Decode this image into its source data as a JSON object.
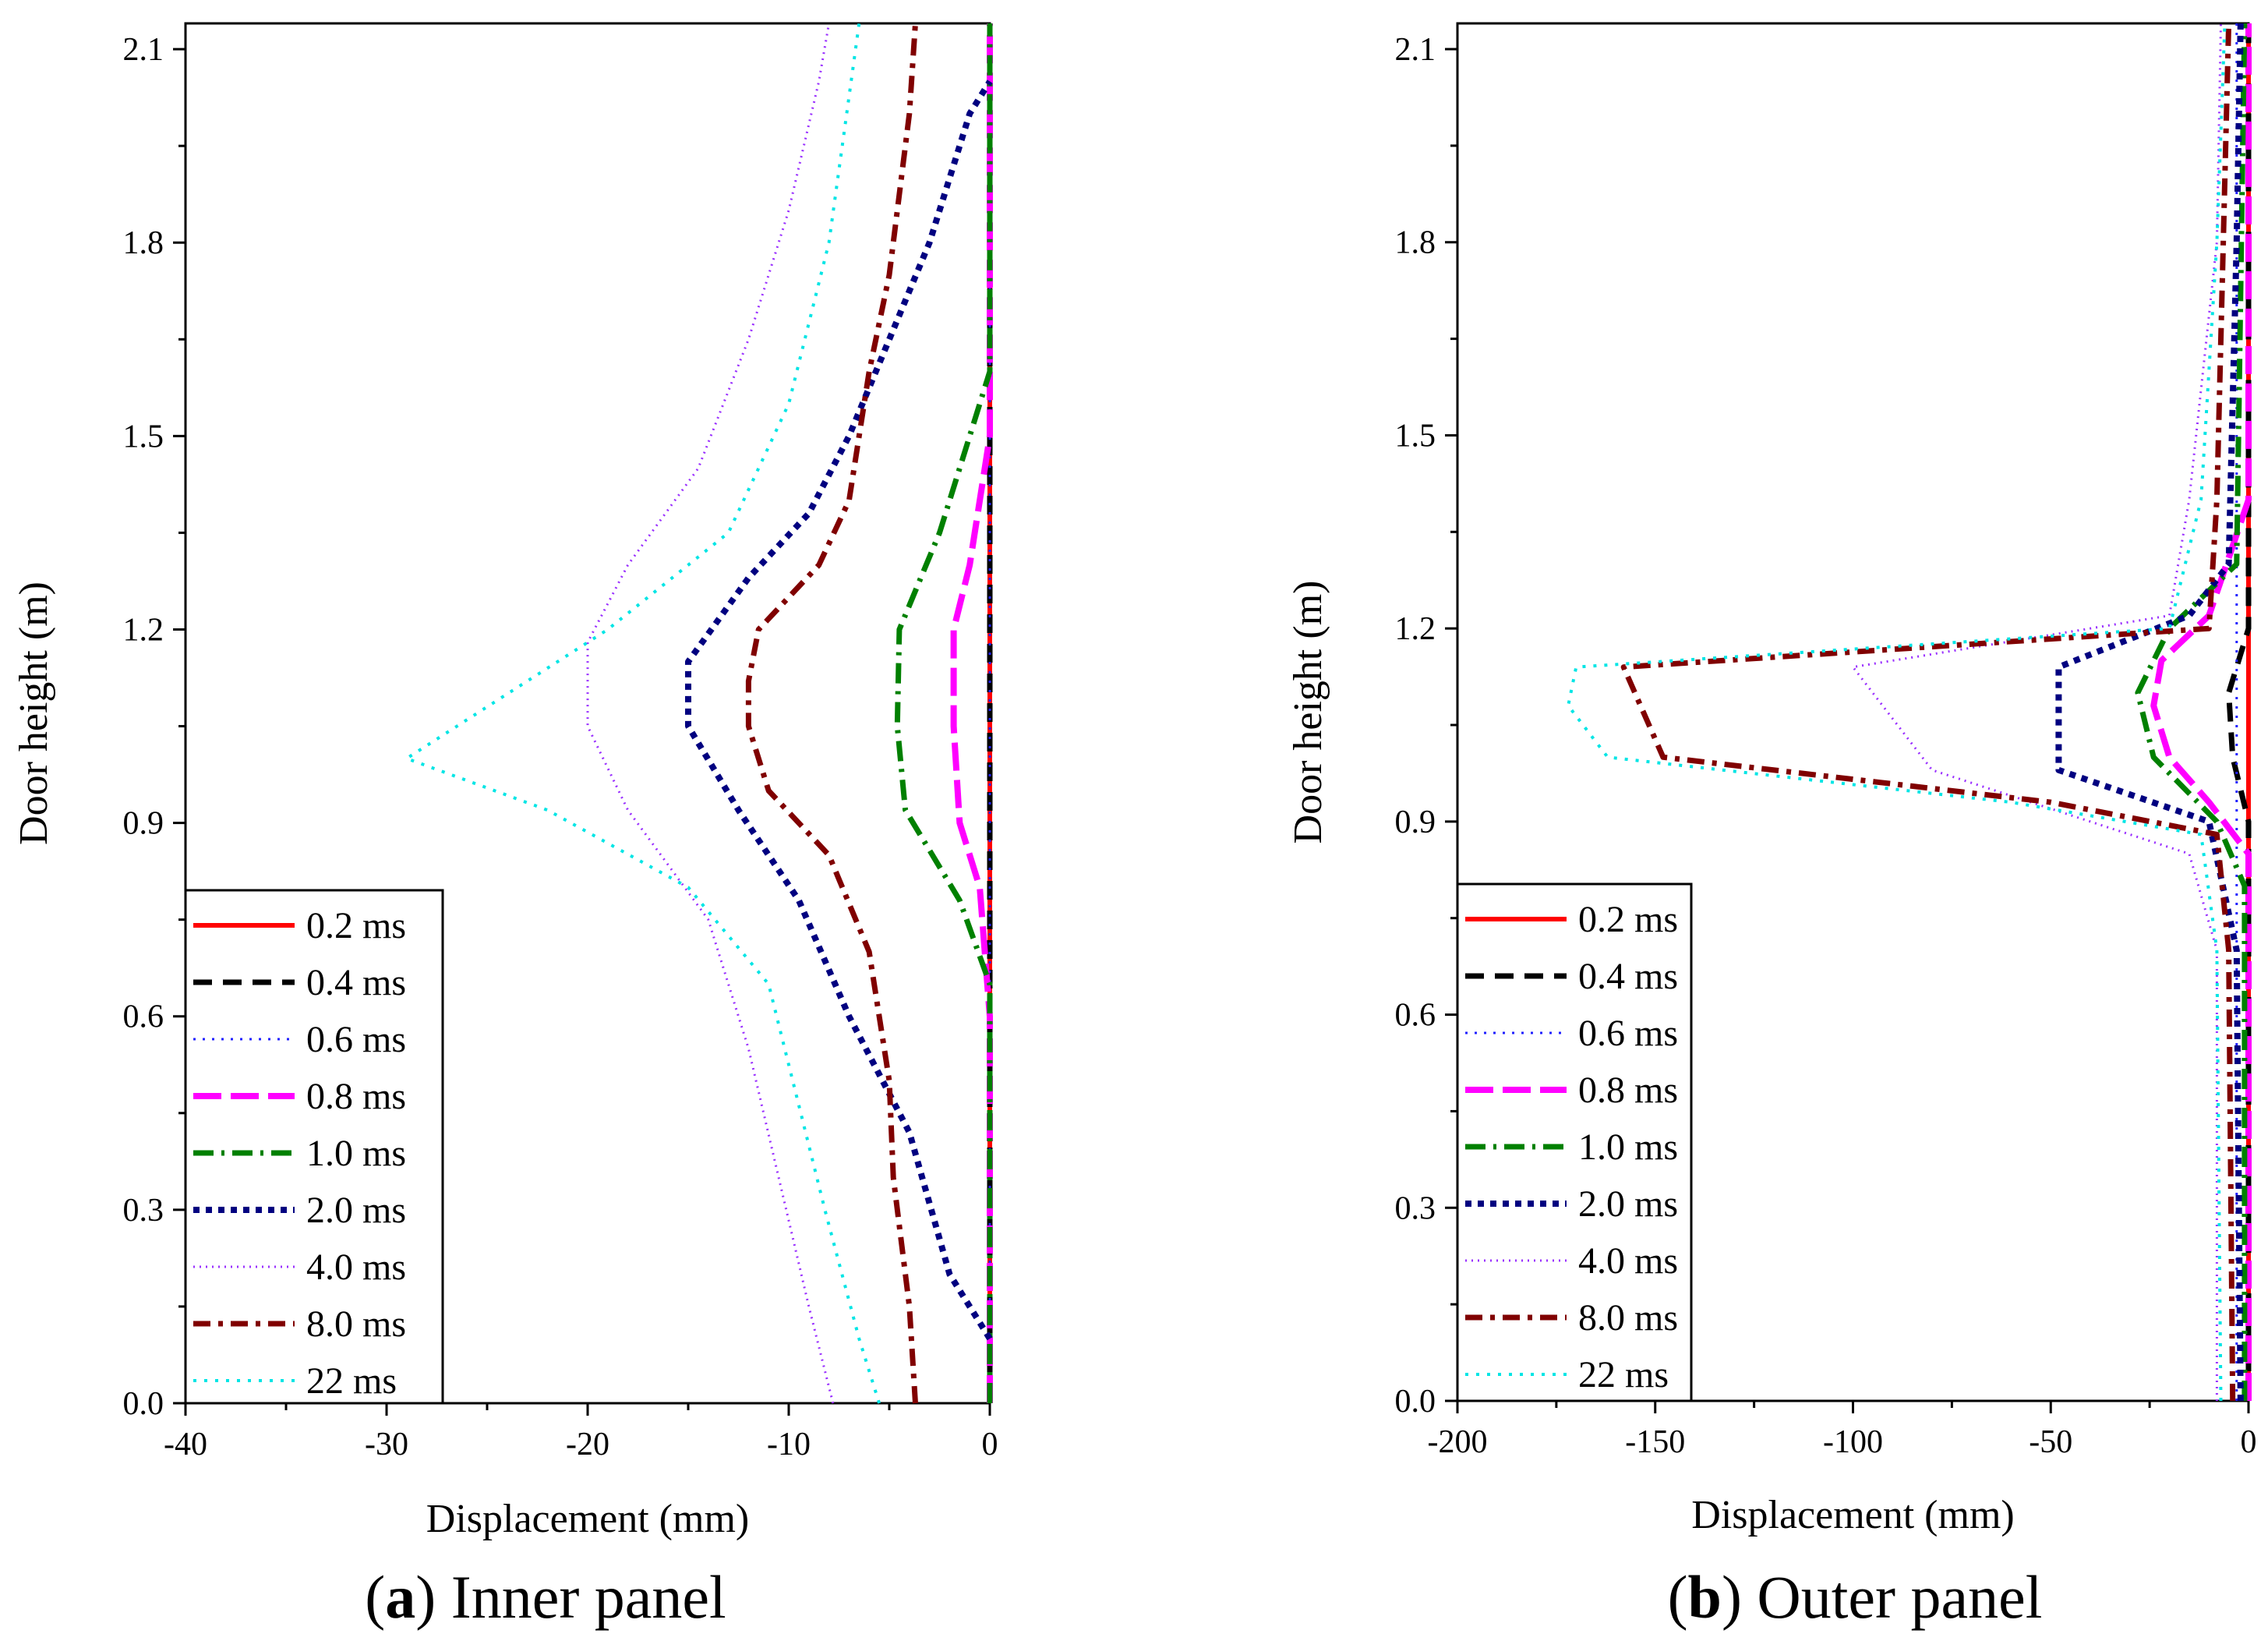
{
  "styles": {
    "0.2 ms": {
      "color": "#ff0000",
      "dash": "",
      "width": 6
    },
    "0.4 ms": {
      "color": "#000000",
      "dash": "24,14",
      "width": 7
    },
    "0.6 ms": {
      "color": "#2020ff",
      "dash": "3,9",
      "width": 3
    },
    "0.8 ms": {
      "color": "#ff00ff",
      "dash": "36,12",
      "width": 8
    },
    "1.0 ms": {
      "color": "#008000",
      "dash": "26,10,4,10",
      "width": 7
    },
    "2.0 ms": {
      "color": "#000080",
      "dash": "8,8",
      "width": 8
    },
    "4.0 ms": {
      "color": "#9a30ff",
      "dash": "2,6",
      "width": 3
    },
    "8.0 ms": {
      "color": "#800000",
      "dash": "22,10,6,10",
      "width": 7
    },
    "22 ms": {
      "color": "#00e5e5",
      "dash": "4,10",
      "width": 4
    }
  },
  "chart_data": [
    {
      "type": "line",
      "caption_label": "a",
      "caption_text": " Inner panel",
      "xlabel": "Displacement (mm)",
      "ylabel": "Door height (m)",
      "xlim": [
        -40,
        0
      ],
      "ylim": [
        0.0,
        2.14
      ],
      "xticks": [
        "-40",
        "-30",
        "-20",
        "-10",
        "0"
      ],
      "yticks": [
        "0.0",
        "0.3",
        "0.6",
        "0.9",
        "1.2",
        "1.5",
        "1.8",
        "2.1"
      ],
      "legend": [
        "0.2 ms",
        "0.4 ms",
        "0.6 ms",
        "0.8 ms",
        "1.0 ms",
        "2.0 ms",
        "4.0 ms",
        "8.0 ms",
        "22 ms"
      ],
      "legend_position": "bottom-left",
      "series": [
        {
          "name": "0.2 ms",
          "points": [
            [
              0,
              0.0
            ],
            [
              0,
              2.14
            ]
          ]
        },
        {
          "name": "0.4 ms",
          "points": [
            [
              0,
              0.0
            ],
            [
              0,
              2.14
            ]
          ]
        },
        {
          "name": "0.6 ms",
          "points": [
            [
              0,
              0.0
            ],
            [
              0,
              2.14
            ]
          ]
        },
        {
          "name": "0.8 ms",
          "points": [
            [
              0,
              0.0
            ],
            [
              0,
              0.6
            ],
            [
              -0.5,
              0.8
            ],
            [
              -1.5,
              0.9
            ],
            [
              -1.8,
              1.05
            ],
            [
              -1.8,
              1.2
            ],
            [
              -1,
              1.3
            ],
            [
              0,
              1.5
            ],
            [
              0,
              2.14
            ]
          ]
        },
        {
          "name": "1.0 ms",
          "points": [
            [
              0,
              0.0
            ],
            [
              0,
              0.65
            ],
            [
              -1.5,
              0.78
            ],
            [
              -4.2,
              0.92
            ],
            [
              -4.6,
              1.05
            ],
            [
              -4.5,
              1.2
            ],
            [
              -2.5,
              1.35
            ],
            [
              0,
              1.6
            ],
            [
              0,
              2.14
            ]
          ]
        },
        {
          "name": "2.0 ms",
          "points": [
            [
              0,
              0.1
            ],
            [
              -2,
              0.2
            ],
            [
              -4,
              0.42
            ],
            [
              -7,
              0.6
            ],
            [
              -9.5,
              0.78
            ],
            [
              -12.5,
              0.92
            ],
            [
              -15,
              1.05
            ],
            [
              -15,
              1.15
            ],
            [
              -12,
              1.28
            ],
            [
              -9,
              1.38
            ],
            [
              -7,
              1.5
            ],
            [
              -5,
              1.65
            ],
            [
              -3,
              1.8
            ],
            [
              -1,
              2.0
            ],
            [
              0,
              2.05
            ]
          ]
        },
        {
          "name": "4.0 ms",
          "points": [
            [
              -7.8,
              0.0
            ],
            [
              -9,
              0.15
            ],
            [
              -10.5,
              0.35
            ],
            [
              -12,
              0.55
            ],
            [
              -14,
              0.75
            ],
            [
              -18,
              0.92
            ],
            [
              -20,
              1.05
            ],
            [
              -20,
              1.18
            ],
            [
              -18,
              1.3
            ],
            [
              -14.5,
              1.45
            ],
            [
              -12,
              1.65
            ],
            [
              -10,
              1.85
            ],
            [
              -8.5,
              2.05
            ],
            [
              -8,
              2.14
            ]
          ]
        },
        {
          "name": "8.0 ms",
          "points": [
            [
              -3.7,
              0.0
            ],
            [
              -4,
              0.15
            ],
            [
              -4.8,
              0.35
            ],
            [
              -5,
              0.5
            ],
            [
              -6,
              0.7
            ],
            [
              -8,
              0.85
            ],
            [
              -11,
              0.95
            ],
            [
              -12,
              1.05
            ],
            [
              -12,
              1.12
            ],
            [
              -11.5,
              1.2
            ],
            [
              -8.5,
              1.3
            ],
            [
              -7,
              1.4
            ],
            [
              -6,
              1.6
            ],
            [
              -5,
              1.75
            ],
            [
              -4,
              2.0
            ],
            [
              -3.7,
              2.14
            ]
          ]
        },
        {
          "name": "22 ms",
          "points": [
            [
              -5.5,
              0.0
            ],
            [
              -6.5,
              0.1
            ],
            [
              -8.2,
              0.3
            ],
            [
              -11,
              0.65
            ],
            [
              -15,
              0.8
            ],
            [
              -22,
              0.92
            ],
            [
              -29,
              1.0
            ],
            [
              -25,
              1.08
            ],
            [
              -19,
              1.2
            ],
            [
              -13,
              1.35
            ],
            [
              -10,
              1.55
            ],
            [
              -8,
              1.8
            ],
            [
              -6.5,
              2.14
            ]
          ]
        }
      ]
    },
    {
      "type": "line",
      "caption_label": "b",
      "caption_text": " Outer panel",
      "xlabel": "Displacement (mm)",
      "ylabel": "Door height (m)",
      "xlim": [
        -200,
        0
      ],
      "ylim": [
        0.0,
        2.14
      ],
      "xticks": [
        "-200",
        "-150",
        "-100",
        "-50",
        "0"
      ],
      "yticks": [
        "0.0",
        "0.3",
        "0.6",
        "0.9",
        "1.2",
        "1.5",
        "1.8",
        "2.1"
      ],
      "legend": [
        "0.2 ms",
        "0.4 ms",
        "0.6 ms",
        "0.8 ms",
        "1.0 ms",
        "2.0 ms",
        "4.0 ms",
        "8.0 ms",
        "22 ms"
      ],
      "legend_position": "bottom-left",
      "series": [
        {
          "name": "0.2 ms",
          "points": [
            [
              0,
              0.0
            ],
            [
              0,
              2.14
            ]
          ]
        },
        {
          "name": "0.4 ms",
          "points": [
            [
              0,
              0.0
            ],
            [
              0,
              0.9
            ],
            [
              -4,
              1.0
            ],
            [
              -5,
              1.1
            ],
            [
              0,
              1.2
            ],
            [
              0,
              2.14
            ]
          ]
        },
        {
          "name": "0.6 ms",
          "points": [
            [
              -3,
              0.0
            ],
            [
              -3,
              2.14
            ]
          ]
        },
        {
          "name": "0.8 ms",
          "points": [
            [
              0,
              0.0
            ],
            [
              0,
              0.85
            ],
            [
              -10,
              0.93
            ],
            [
              -20,
              1.0
            ],
            [
              -24,
              1.08
            ],
            [
              -22,
              1.15
            ],
            [
              -10,
              1.22
            ],
            [
              0,
              1.4
            ],
            [
              0,
              2.14
            ]
          ]
        },
        {
          "name": "1.0 ms",
          "points": [
            [
              -1,
              0.0
            ],
            [
              -1,
              0.8
            ],
            [
              -8,
              0.9
            ],
            [
              -24,
              1.0
            ],
            [
              -28,
              1.1
            ],
            [
              -20,
              1.2
            ],
            [
              -3,
              1.3
            ],
            [
              -1,
              2.14
            ]
          ]
        },
        {
          "name": "2.0 ms",
          "points": [
            [
              -2,
              0.0
            ],
            [
              -3,
              0.7
            ],
            [
              -10,
              0.9
            ],
            [
              -48,
              0.98
            ],
            [
              -48,
              1.14
            ],
            [
              -15,
              1.22
            ],
            [
              -5,
              1.3
            ],
            [
              -3,
              1.8
            ],
            [
              -2,
              2.14
            ]
          ]
        },
        {
          "name": "4.0 ms",
          "points": [
            [
              -8,
              0.0
            ],
            [
              -8,
              0.7
            ],
            [
              -15,
              0.85
            ],
            [
              -80,
              0.98
            ],
            [
              -100,
              1.14
            ],
            [
              -20,
              1.22
            ],
            [
              -15,
              1.4
            ],
            [
              -8,
              1.8
            ],
            [
              -7,
              2.14
            ]
          ]
        },
        {
          "name": "8.0 ms",
          "points": [
            [
              -4,
              0.0
            ],
            [
              -5,
              0.7
            ],
            [
              -8,
              0.88
            ],
            [
              -50,
              0.93
            ],
            [
              -148,
              1.0
            ],
            [
              -158,
              1.14
            ],
            [
              -10,
              1.2
            ],
            [
              -8,
              1.4
            ],
            [
              -5,
              2.14
            ]
          ]
        },
        {
          "name": "22 ms",
          "points": [
            [
              -7,
              0.0
            ],
            [
              -8,
              0.7
            ],
            [
              -12,
              0.88
            ],
            [
              -60,
              0.93
            ],
            [
              -162,
              1.0
            ],
            [
              -172,
              1.08
            ],
            [
              -170,
              1.14
            ],
            [
              -20,
              1.2
            ],
            [
              -12,
              1.4
            ],
            [
              -8,
              1.8
            ],
            [
              -6,
              2.14
            ]
          ]
        }
      ]
    }
  ]
}
